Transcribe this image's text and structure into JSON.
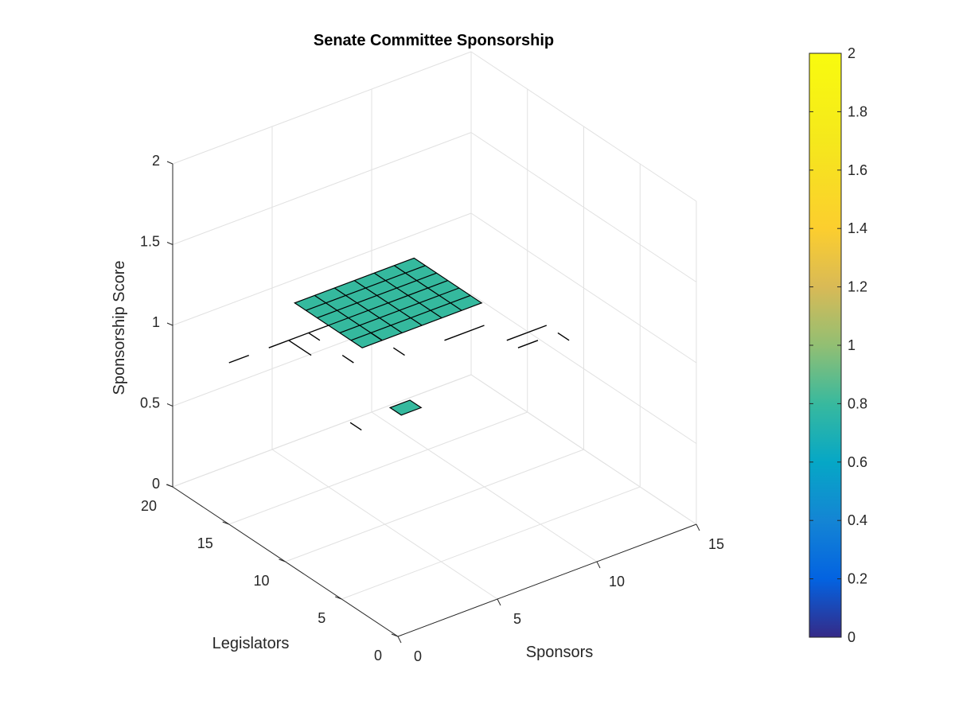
{
  "chart_data": {
    "type": "surface3d",
    "title": "Senate Committee Sponsorship",
    "xlabel": "Sponsors",
    "ylabel": "Legislators",
    "zlabel": "Sponsorship Score",
    "xlim": [
      0,
      15
    ],
    "ylim": [
      0,
      20
    ],
    "zlim": [
      0,
      2
    ],
    "xticks": [
      "0",
      "5",
      "10",
      "15"
    ],
    "yticks": [
      "0",
      "5",
      "10",
      "15",
      "20"
    ],
    "zticks": [
      "0",
      "0.5",
      "1",
      "1.5",
      "2"
    ],
    "grid": true,
    "view": "default 3-D view (azimuth -37.5, elevation 30)",
    "colormap": "parula",
    "colorbar": {
      "location": "right",
      "limits": [
        0,
        2
      ],
      "ticks": [
        "0",
        "0.2",
        "0.4",
        "0.6",
        "0.8",
        "1",
        "1.2",
        "1.4",
        "1.6",
        "1.8",
        "2"
      ]
    },
    "surface": {
      "description": "Sponsorship score is 1 where a sponsor backs a legislator; undefined elsewhere",
      "value": 1,
      "patches": [
        {
          "x": [
            5,
            11
          ],
          "y": [
            12,
            18
          ]
        },
        {
          "x": [
            3,
            4
          ],
          "y": [
            5,
            6
          ]
        }
      ],
      "segments": [
        {
          "x": [
            0,
            1
          ],
          "y": [
            15,
            15
          ]
        },
        {
          "x": [
            2,
            5
          ],
          "y": [
            15,
            15
          ]
        },
        {
          "x": [
            10,
            11
          ],
          "y": [
            7,
            7
          ]
        },
        {
          "x": [
            10,
            12
          ],
          "y": [
            8,
            8
          ]
        },
        {
          "x": [
            8,
            10
          ],
          "y": [
            10,
            10
          ]
        },
        {
          "x": [
            6,
            6
          ],
          "y": [
            12,
            13
          ]
        },
        {
          "x": [
            6,
            6
          ],
          "y": [
            10,
            11
          ]
        },
        {
          "x": [
            4,
            4
          ],
          "y": [
            11,
            12
          ]
        },
        {
          "x": [
            3,
            3
          ],
          "y": [
            13,
            15
          ]
        },
        {
          "x": [
            12,
            12
          ],
          "y": [
            6,
            7
          ]
        },
        {
          "x": [
            4,
            4
          ],
          "y": [
            14,
            15
          ]
        },
        {
          "x": [
            1,
            1
          ],
          "y": [
            5,
            6
          ]
        }
      ]
    },
    "colors": {
      "surface_face": "#35b99e",
      "edge": "#000000",
      "grid": "#e1e1e1",
      "axis": "#262626"
    }
  }
}
